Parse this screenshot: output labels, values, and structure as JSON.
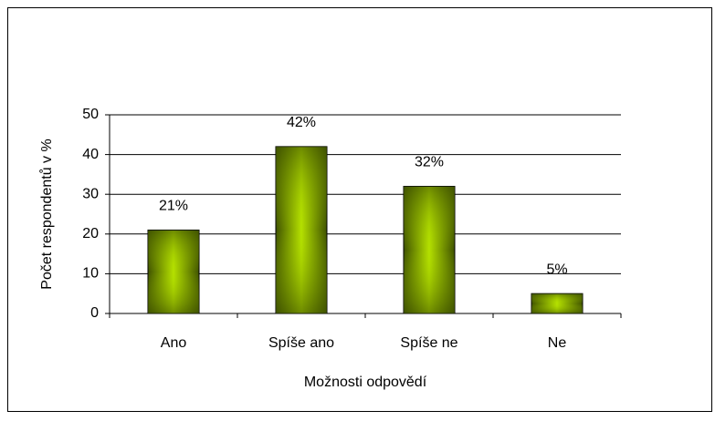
{
  "chart_data": {
    "type": "bar",
    "categories": [
      "Ano",
      "Spíše ano",
      "Spíše ne",
      "Ne"
    ],
    "values": [
      21,
      42,
      32,
      5
    ],
    "value_labels": [
      "21%",
      "42%",
      "32%",
      "5%"
    ],
    "color": "#9ccc00",
    "ylim": [
      0,
      50
    ],
    "yticks": [
      0,
      10,
      20,
      30,
      40,
      50
    ],
    "grid": true,
    "y_label": "Počet respondentů v %",
    "x_label": "Možnosti odpovědí"
  }
}
